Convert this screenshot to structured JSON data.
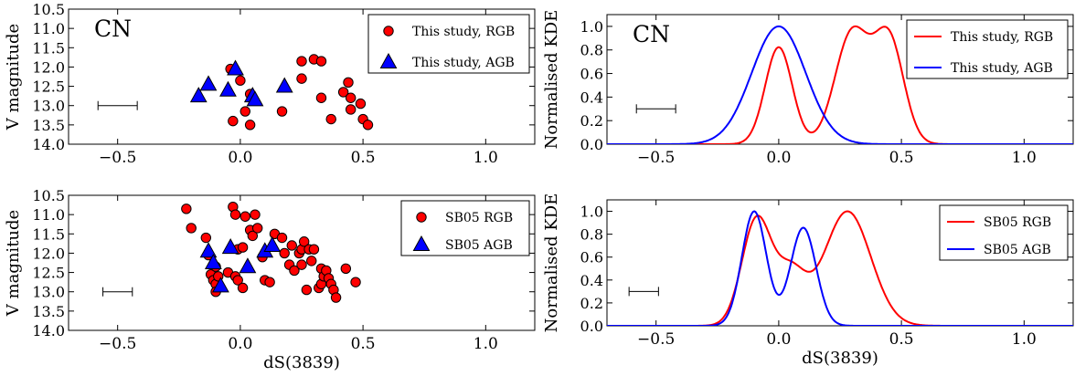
{
  "chart_data": [
    {
      "type": "scatter",
      "panel_label": "CN",
      "xlabel": "",
      "ylabel": "V magnitude",
      "xlim": [
        -0.7,
        1.2
      ],
      "ylim": [
        14.0,
        10.5
      ],
      "y_inverted": true,
      "xticks": [
        "−0.5",
        "0.0",
        "0.5",
        "1.0"
      ],
      "xtick_values": [
        -0.5,
        0.0,
        0.5,
        1.0
      ],
      "yticks": [
        "10.5",
        "11.0",
        "11.5",
        "12.0",
        "12.5",
        "13.0",
        "13.5",
        "14.0"
      ],
      "ytick_values": [
        10.5,
        11.0,
        11.5,
        12.0,
        12.5,
        13.0,
        13.5,
        14.0
      ],
      "legend_position": "top-right",
      "error_bar": {
        "x": -0.5,
        "y": 13.0,
        "half_width": 0.08
      },
      "series": [
        {
          "name": "This study, RGB",
          "marker": "circle",
          "color": "#ff0000",
          "points": [
            [
              -0.04,
              12.05
            ],
            [
              -0.03,
              13.4
            ],
            [
              0.0,
              12.35
            ],
            [
              0.02,
              13.15
            ],
            [
              0.04,
              13.5
            ],
            [
              0.04,
              12.7
            ],
            [
              0.17,
              13.15
            ],
            [
              0.25,
              11.85
            ],
            [
              0.25,
              12.3
            ],
            [
              0.3,
              11.8
            ],
            [
              0.33,
              11.85
            ],
            [
              0.33,
              12.8
            ],
            [
              0.37,
              13.35
            ],
            [
              0.42,
              12.65
            ],
            [
              0.44,
              12.4
            ],
            [
              0.45,
              12.8
            ],
            [
              0.45,
              13.1
            ],
            [
              0.49,
              12.95
            ],
            [
              0.5,
              13.35
            ],
            [
              0.52,
              13.5
            ]
          ]
        },
        {
          "name": "This study, AGB",
          "marker": "triangle",
          "color": "#0000ff",
          "points": [
            [
              -0.17,
              12.75
            ],
            [
              -0.13,
              12.45
            ],
            [
              -0.05,
              12.6
            ],
            [
              -0.02,
              12.05
            ],
            [
              0.05,
              12.75
            ],
            [
              0.06,
              12.85
            ],
            [
              0.18,
              12.5
            ]
          ]
        }
      ]
    },
    {
      "type": "line",
      "panel_label": "CN",
      "xlabel": "",
      "ylabel": "Normalised KDE",
      "xlim": [
        -0.7,
        1.2
      ],
      "ylim": [
        0.0,
        1.1
      ],
      "xticks": [
        "−0.5",
        "0.0",
        "0.5",
        "1.0"
      ],
      "xtick_values": [
        -0.5,
        0.0,
        0.5,
        1.0
      ],
      "yticks": [
        "0.0",
        "0.2",
        "0.4",
        "0.6",
        "0.8",
        "1.0"
      ],
      "ytick_values": [
        0.0,
        0.2,
        0.4,
        0.6,
        0.8,
        1.0
      ],
      "legend_position": "top-right",
      "error_bar": {
        "x": -0.5,
        "y": 0.3,
        "half_width": 0.08
      },
      "series": [
        {
          "name": "This study, RGB",
          "color": "#ff0000",
          "components": [
            {
              "mu": 0.0,
              "sigma": 0.055,
              "amp": 0.64
            },
            {
              "mu": 0.3,
              "sigma": 0.07,
              "amp": 0.74
            },
            {
              "mu": 0.45,
              "sigma": 0.06,
              "amp": 0.68
            }
          ],
          "normalize": true
        },
        {
          "name": "This study, AGB",
          "color": "#0000ff",
          "components": [
            {
              "mu": 0.0,
              "sigma": 0.11,
              "amp": 1.0
            }
          ],
          "normalize": true
        }
      ]
    },
    {
      "type": "scatter",
      "panel_label": "",
      "xlabel": "dS(3839)",
      "ylabel": "V magnitude",
      "xlim": [
        -0.7,
        1.2
      ],
      "ylim": [
        14.0,
        10.5
      ],
      "y_inverted": true,
      "xticks": [
        "−0.5",
        "0.0",
        "0.5",
        "1.0"
      ],
      "xtick_values": [
        -0.5,
        0.0,
        0.5,
        1.0
      ],
      "yticks": [
        "10.5",
        "11.0",
        "11.5",
        "12.0",
        "12.5",
        "13.0",
        "13.5",
        "14.0"
      ],
      "ytick_values": [
        10.5,
        11.0,
        11.5,
        12.0,
        12.5,
        13.0,
        13.5,
        14.0
      ],
      "legend_position": "top-right",
      "error_bar": {
        "x": -0.5,
        "y": 13.0,
        "half_width": 0.06
      },
      "series": [
        {
          "name": "SB05 RGB",
          "marker": "circle",
          "color": "#ff0000",
          "points": [
            [
              -0.22,
              10.85
            ],
            [
              -0.2,
              11.35
            ],
            [
              -0.14,
              11.6
            ],
            [
              -0.13,
              12.05
            ],
            [
              -0.12,
              12.55
            ],
            [
              -0.11,
              12.7
            ],
            [
              -0.1,
              12.35
            ],
            [
              -0.1,
              12.8
            ],
            [
              -0.1,
              13.0
            ],
            [
              -0.09,
              12.6
            ],
            [
              -0.05,
              12.5
            ],
            [
              -0.03,
              10.8
            ],
            [
              -0.02,
              11.0
            ],
            [
              -0.02,
              12.6
            ],
            [
              -0.01,
              12.7
            ],
            [
              -0.01,
              11.9
            ],
            [
              0.01,
              11.85
            ],
            [
              0.01,
              12.9
            ],
            [
              0.02,
              11.05
            ],
            [
              0.04,
              11.4
            ],
            [
              0.05,
              11.55
            ],
            [
              0.06,
              11.0
            ],
            [
              0.07,
              11.35
            ],
            [
              0.09,
              12.1
            ],
            [
              0.1,
              12.7
            ],
            [
              0.12,
              12.75
            ],
            [
              0.14,
              11.5
            ],
            [
              0.17,
              11.6
            ],
            [
              0.18,
              12.0
            ],
            [
              0.2,
              12.3
            ],
            [
              0.21,
              11.8
            ],
            [
              0.22,
              12.45
            ],
            [
              0.24,
              12.0
            ],
            [
              0.25,
              11.9
            ],
            [
              0.25,
              12.3
            ],
            [
              0.26,
              11.7
            ],
            [
              0.27,
              12.95
            ],
            [
              0.28,
              11.9
            ],
            [
              0.29,
              12.2
            ],
            [
              0.3,
              11.9
            ],
            [
              0.32,
              12.9
            ],
            [
              0.33,
              12.8
            ],
            [
              0.33,
              12.4
            ],
            [
              0.34,
              12.6
            ],
            [
              0.35,
              12.45
            ],
            [
              0.36,
              12.65
            ],
            [
              0.37,
              12.8
            ],
            [
              0.38,
              12.95
            ],
            [
              0.39,
              13.15
            ],
            [
              0.43,
              12.4
            ],
            [
              0.47,
              12.75
            ]
          ]
        },
        {
          "name": "SB05 AGB",
          "marker": "triangle",
          "color": "#0000ff",
          "points": [
            [
              -0.13,
              11.95
            ],
            [
              -0.11,
              12.25
            ],
            [
              -0.08,
              12.85
            ],
            [
              -0.04,
              11.85
            ],
            [
              0.03,
              12.35
            ],
            [
              0.1,
              11.95
            ],
            [
              0.13,
              11.8
            ]
          ]
        }
      ]
    },
    {
      "type": "line",
      "panel_label": "",
      "xlabel": "dS(3839)",
      "ylabel": "Normalised KDE",
      "xlim": [
        -0.7,
        1.2
      ],
      "ylim": [
        0.0,
        1.1
      ],
      "xticks": [
        "−0.5",
        "0.0",
        "0.5",
        "1.0"
      ],
      "xtick_values": [
        -0.5,
        0.0,
        0.5,
        1.0
      ],
      "yticks": [
        "0.0",
        "0.2",
        "0.4",
        "0.6",
        "0.8",
        "1.0"
      ],
      "ytick_values": [
        0.0,
        0.2,
        0.4,
        0.6,
        0.8,
        1.0
      ],
      "legend_position": "top-right",
      "error_bar": {
        "x": -0.55,
        "y": 0.3,
        "half_width": 0.06
      },
      "series": [
        {
          "name": "SB05 RGB",
          "color": "#ff0000",
          "components": [
            {
              "mu": -0.09,
              "sigma": 0.06,
              "amp": 0.93
            },
            {
              "mu": 0.05,
              "sigma": 0.06,
              "amp": 0.45
            },
            {
              "mu": 0.28,
              "sigma": 0.095,
              "amp": 1.0
            }
          ],
          "normalize": true
        },
        {
          "name": "SB05 AGB",
          "color": "#0000ff",
          "components": [
            {
              "mu": -0.1,
              "sigma": 0.05,
              "amp": 0.98
            },
            {
              "mu": 0.1,
              "sigma": 0.052,
              "amp": 0.84
            }
          ],
          "normalize": true
        }
      ]
    }
  ]
}
